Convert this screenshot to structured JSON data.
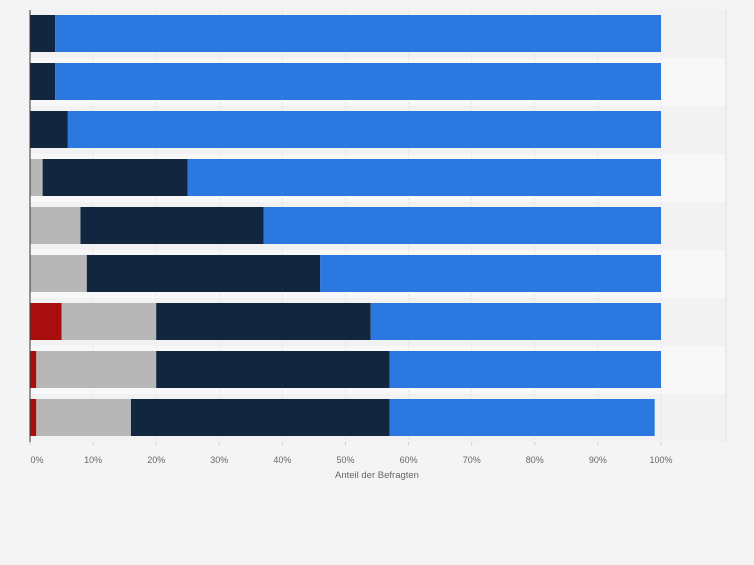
{
  "chart_data": {
    "type": "bar",
    "orientation": "horizontal",
    "stacked": true,
    "title": "",
    "xlabel": "Anteil der Befragten",
    "ylabel": "",
    "xlim": [
      0,
      100
    ],
    "x_ticks": [
      "0%",
      "10%",
      "20%",
      "30%",
      "40%",
      "50%",
      "60%",
      "70%",
      "80%",
      "90%",
      "100%"
    ],
    "categories": [
      "",
      "",
      "",
      "",
      "",
      "",
      "",
      "",
      ""
    ],
    "series": [
      {
        "name": "",
        "color": "#a80e0e",
        "values": [
          0,
          0,
          0,
          0,
          0,
          0,
          5,
          1,
          1
        ]
      },
      {
        "name": "",
        "color": "#b7b7b7",
        "values": [
          0,
          0,
          0,
          2,
          8,
          9,
          15,
          19,
          15
        ]
      },
      {
        "name": "",
        "color": "#12263f",
        "values": [
          4,
          4,
          6,
          23,
          29,
          37,
          34,
          37,
          41
        ]
      },
      {
        "name": "",
        "color": "#2a78e0",
        "values": [
          96,
          96,
          94,
          75,
          63,
          54,
          46,
          43,
          42
        ]
      }
    ],
    "grid": true,
    "legend": "none"
  }
}
